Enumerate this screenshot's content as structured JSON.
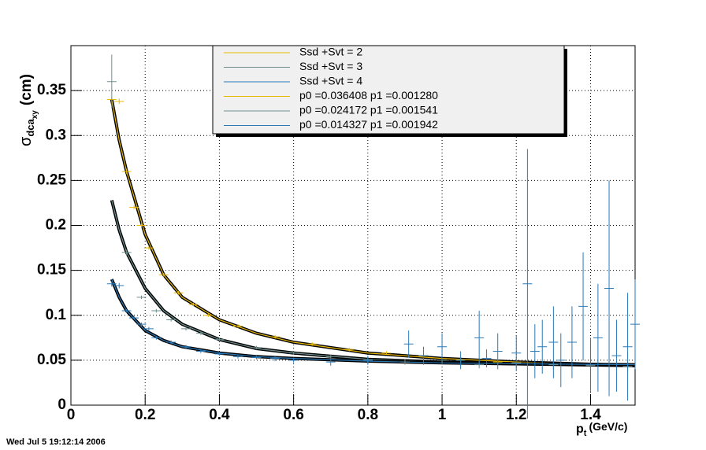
{
  "chart_data": {
    "type": "errorbar",
    "y_label": "σ",
    "y_label_sub": "dca",
    "y_label_subsub": "xy",
    "y_label_unit": "(cm)",
    "x_label": "p",
    "x_label_sub": "t",
    "x_label_unit": "(GeV/c)",
    "footer": "Wed Jul  5 19:12:14 2006",
    "xlim": [
      0,
      1.52
    ],
    "ylim": [
      0,
      0.4
    ],
    "xticks": [
      0,
      0.2,
      0.4,
      0.6,
      0.8,
      1,
      1.2,
      1.4
    ],
    "yticks": [
      0,
      0.05,
      0.1,
      0.15,
      0.2,
      0.25,
      0.3,
      0.35
    ],
    "grid": true,
    "series": [
      {
        "name": "Ssd +Svt = 2",
        "color": "#e8b800",
        "x": [
          0.11,
          0.13,
          0.15,
          0.17,
          0.19,
          0.21,
          0.25,
          0.29,
          0.33,
          0.37,
          0.45,
          0.55,
          0.65,
          0.75,
          0.85,
          0.95,
          1.05,
          1.15
        ],
        "values": [
          0.34,
          0.338,
          0.26,
          0.22,
          0.2,
          0.175,
          0.145,
          0.125,
          0.112,
          0.1,
          0.088,
          0.076,
          0.068,
          0.062,
          0.058,
          0.055,
          0.05,
          0.048
        ],
        "errors": [
          0.003,
          0.003,
          0.003,
          0.002,
          0.002,
          0.002,
          0.002,
          0.002,
          0.002,
          0.002,
          0.002,
          0.002,
          0.002,
          0.002,
          0.002,
          0.002,
          0.003,
          0.003
        ]
      },
      {
        "name": "Ssd +Svt = 3",
        "color": "#6f8f8f",
        "x": [
          0.11,
          0.15,
          0.19,
          0.23,
          0.27,
          0.31,
          0.35,
          0.4,
          0.5,
          0.6,
          0.7,
          0.8,
          0.9,
          1,
          1.1,
          1.2,
          1.3,
          1.4,
          1.5
        ],
        "values": [
          0.36,
          0.17,
          0.12,
          0.105,
          0.095,
          0.085,
          0.08,
          0.073,
          0.064,
          0.058,
          0.054,
          0.05,
          0.048,
          0.05,
          0.045,
          0.047,
          0.045,
          0.044,
          0.043
        ],
        "errors": [
          0.03,
          0.003,
          0.002,
          0.002,
          0.002,
          0.002,
          0.002,
          0.002,
          0.002,
          0.002,
          0.002,
          0.003,
          0.003,
          0.004,
          0.004,
          0.005,
          0.005,
          0.006,
          0.006
        ]
      },
      {
        "name": "Ssd +Svt = 4",
        "color": "#2a7ab8",
        "x": [
          0.11,
          0.13,
          0.15,
          0.17,
          0.19,
          0.21,
          0.23,
          0.27,
          0.31,
          0.35,
          0.4,
          0.45,
          0.5,
          0.55,
          0.6,
          0.7,
          0.8,
          0.91,
          0.95,
          1,
          1.05,
          1.1,
          1.12,
          1.15,
          1.2,
          1.23,
          1.25,
          1.27,
          1.3,
          1.32,
          1.35,
          1.38,
          1.4,
          1.42,
          1.45,
          1.47,
          1.5,
          1.52
        ],
        "values": [
          0.135,
          0.133,
          0.105,
          0.097,
          0.09,
          0.085,
          0.075,
          0.07,
          0.065,
          0.06,
          0.057,
          0.054,
          0.053,
          0.052,
          0.05,
          0.048,
          0.05,
          0.068,
          0.055,
          0.065,
          0.05,
          0.075,
          0.052,
          0.06,
          0.058,
          0.135,
          0.06,
          0.065,
          0.07,
          0.05,
          0.07,
          0.11,
          0.045,
          0.075,
          0.13,
          0.055,
          0.065,
          0.09
        ],
        "errors": [
          0.003,
          0.003,
          0.002,
          0.002,
          0.002,
          0.002,
          0.002,
          0.002,
          0.002,
          0.002,
          0.002,
          0.002,
          0.002,
          0.003,
          0.003,
          0.004,
          0.005,
          0.015,
          0.01,
          0.015,
          0.01,
          0.03,
          0.01,
          0.02,
          0.02,
          0.15,
          0.03,
          0.03,
          0.04,
          0.03,
          0.04,
          0.06,
          0.03,
          0.06,
          0.12,
          0.04,
          0.06,
          0.05
        ]
      }
    ],
    "fits": [
      {
        "name": "p0 =0.036408 p1 =0.001280",
        "color": "#e8b800",
        "x": [
          0.11,
          0.13,
          0.15,
          0.2,
          0.25,
          0.3,
          0.4,
          0.5,
          0.6,
          0.8,
          1,
          1.2,
          1.52
        ],
        "values": [
          0.34,
          0.295,
          0.26,
          0.19,
          0.145,
          0.12,
          0.095,
          0.08,
          0.07,
          0.058,
          0.052,
          0.048,
          0.044
        ]
      },
      {
        "name": "p0 =0.024172 p1 =0.001541",
        "color": "#6f8f8f",
        "x": [
          0.11,
          0.13,
          0.15,
          0.2,
          0.25,
          0.3,
          0.4,
          0.5,
          0.6,
          0.8,
          1,
          1.2,
          1.52
        ],
        "values": [
          0.228,
          0.195,
          0.17,
          0.13,
          0.105,
          0.09,
          0.073,
          0.063,
          0.058,
          0.051,
          0.048,
          0.046,
          0.044
        ]
      },
      {
        "name": "p0 =0.014327 p1 =0.001942",
        "color": "#2a7ab8",
        "x": [
          0.11,
          0.13,
          0.15,
          0.2,
          0.25,
          0.3,
          0.4,
          0.5,
          0.6,
          0.8,
          1,
          1.2,
          1.52
        ],
        "values": [
          0.14,
          0.12,
          0.105,
          0.083,
          0.072,
          0.065,
          0.058,
          0.054,
          0.052,
          0.049,
          0.047,
          0.046,
          0.045
        ]
      }
    ]
  }
}
